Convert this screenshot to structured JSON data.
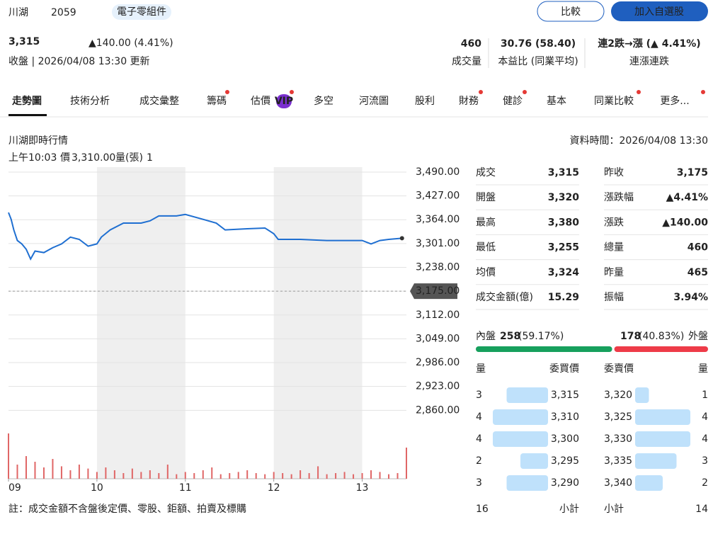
{
  "header": {
    "name": "川湖",
    "code": "2059",
    "sector": "電子零組件",
    "compare_button": "比較",
    "watchlist_button": "加入自選股",
    "price": "3,315",
    "change": "▲140.00 (4.41%)",
    "status": "收盤 | 2026/04/08 13:30 更新",
    "stats": [
      {
        "value": "460",
        "label": "成交量"
      },
      {
        "value": "30.76 (58.40)",
        "label": "本益比 (同業平均)"
      },
      {
        "value": "連2跌→漲 (▲ 4.41%)",
        "label": "連漲連跌"
      }
    ]
  },
  "tabs": [
    "走勢圖",
    "技術分析",
    "成交彙整",
    "籌碼",
    "估價",
    "多空",
    "河流圖",
    "股利",
    "財務",
    "健診",
    "基本",
    "同業比較",
    "更多..."
  ],
  "vip_badge": "VIP",
  "section": {
    "title": "川湖即時行情",
    "data_time": "資料時間：2026/04/08 13:30"
  },
  "hover": {
    "time": "上午10:03",
    "price_label": "價",
    "price": "3,310.00",
    "volume_label": "量(張)",
    "volume": "1"
  },
  "chart_data": [
    {
      "type": "line",
      "color": "#1f6fd1",
      "grid": true,
      "x": [
        9.0,
        9.03,
        9.06,
        9.1,
        9.15,
        9.2,
        9.25,
        9.3,
        9.4,
        9.5,
        9.6,
        9.7,
        9.8,
        9.9,
        10.0,
        10.05,
        10.15,
        10.3,
        10.5,
        10.6,
        10.7,
        10.9,
        11.0,
        11.2,
        11.35,
        11.45,
        11.7,
        11.9,
        12.0,
        12.05,
        12.3,
        12.6,
        12.8,
        13.0,
        13.1,
        13.2,
        13.3,
        13.45
      ],
      "values": [
        3383,
        3365,
        3337,
        3309,
        3300,
        3286,
        3260,
        3281,
        3277,
        3290,
        3300,
        3318,
        3312,
        3294,
        3300,
        3318,
        3337,
        3355,
        3355,
        3361,
        3374,
        3374,
        3378,
        3365,
        3355,
        3337,
        3340,
        3342,
        3327,
        3312,
        3312,
        3309,
        3309,
        3309,
        3300,
        3309,
        3312,
        3315
      ],
      "xlim": [
        9,
        13.5
      ],
      "xticks": [
        {
          "value": 9,
          "label": "09"
        },
        {
          "value": 10,
          "label": "10"
        },
        {
          "value": 11,
          "label": "11"
        },
        {
          "value": 12,
          "label": "12"
        },
        {
          "value": 13,
          "label": "13"
        }
      ],
      "ylim": [
        2840,
        3503
      ],
      "yticks": [
        {
          "value": 3490,
          "label": "3,490.00"
        },
        {
          "value": 3427,
          "label": "3,427.00"
        },
        {
          "value": 3364,
          "label": "3,364.00"
        },
        {
          "value": 3301,
          "label": "3,301.00"
        },
        {
          "value": 3238,
          "label": "3,238.00"
        },
        {
          "value": 3175,
          "label": "3,175.00"
        },
        {
          "value": 3112,
          "label": "3,112.00"
        },
        {
          "value": 3049,
          "label": "3,049.00"
        },
        {
          "value": 2986,
          "label": "2,986.00"
        },
        {
          "value": 2923,
          "label": "2,923.00"
        },
        {
          "value": 2860,
          "label": "2,860.00"
        }
      ],
      "reference_line": 3175
    },
    {
      "type": "bar",
      "color": "#e06666",
      "xlim": [
        9,
        13.5
      ],
      "ylim": [
        0,
        100
      ],
      "x": [
        9.0,
        9.1,
        9.2,
        9.3,
        9.4,
        9.5,
        9.6,
        9.7,
        9.8,
        9.9,
        10.0,
        10.1,
        10.2,
        10.3,
        10.4,
        10.5,
        10.6,
        10.7,
        10.8,
        10.9,
        11.0,
        11.1,
        11.2,
        11.3,
        11.4,
        11.5,
        11.6,
        11.7,
        11.8,
        11.9,
        12.0,
        12.1,
        12.2,
        12.3,
        12.4,
        12.5,
        12.6,
        12.7,
        12.8,
        12.9,
        13.0,
        13.1,
        13.2,
        13.3,
        13.4,
        13.5
      ],
      "values": [
        80,
        25,
        40,
        30,
        20,
        35,
        22,
        15,
        25,
        18,
        12,
        20,
        15,
        10,
        18,
        12,
        15,
        10,
        25,
        8,
        12,
        10,
        15,
        20,
        8,
        10,
        12,
        15,
        10,
        8,
        12,
        10,
        8,
        15,
        10,
        22,
        8,
        10,
        12,
        8,
        10,
        15,
        12,
        8,
        10,
        55
      ]
    }
  ],
  "footnote": "註：成交金額不含盤後定價、零股、鉅額、拍賣及標購",
  "quote": {
    "rows": [
      [
        "成交",
        "3,315",
        "昨收",
        "3,175"
      ],
      [
        "開盤",
        "3,320",
        "漲跌幅",
        "▲4.41%"
      ],
      [
        "最高",
        "3,380",
        "漲跌",
        "▲140.00"
      ],
      [
        "最低",
        "3,255",
        "總量",
        "460"
      ],
      [
        "均價",
        "3,324",
        "昨量",
        "465"
      ],
      [
        "成交金額(億)",
        "15.29",
        "振幅",
        "3.94%"
      ]
    ]
  },
  "order_flow": {
    "inner": {
      "label": "內盤",
      "volume": 258,
      "percent": 59.17,
      "percent_label": "(59.17%)"
    },
    "outer": {
      "label": "外盤",
      "volume": 178,
      "percent": 40.83,
      "percent_label": "(40.83%)"
    }
  },
  "order_book": {
    "headers": [
      "量",
      "委買價",
      "委賣價",
      "量"
    ],
    "bids": [
      {
        "qty": 3,
        "price": "3,315"
      },
      {
        "qty": 4,
        "price": "3,310"
      },
      {
        "qty": 4,
        "price": "3,300"
      },
      {
        "qty": 2,
        "price": "3,295"
      },
      {
        "qty": 3,
        "price": "3,290"
      }
    ],
    "asks": [
      {
        "price": "3,320",
        "qty": 1
      },
      {
        "price": "3,325",
        "qty": 4
      },
      {
        "price": "3,330",
        "qty": 4
      },
      {
        "price": "3,335",
        "qty": 3
      },
      {
        "price": "3,340",
        "qty": 2
      }
    ],
    "total_label": "小計",
    "bid_total": 16,
    "ask_total": 14
  }
}
